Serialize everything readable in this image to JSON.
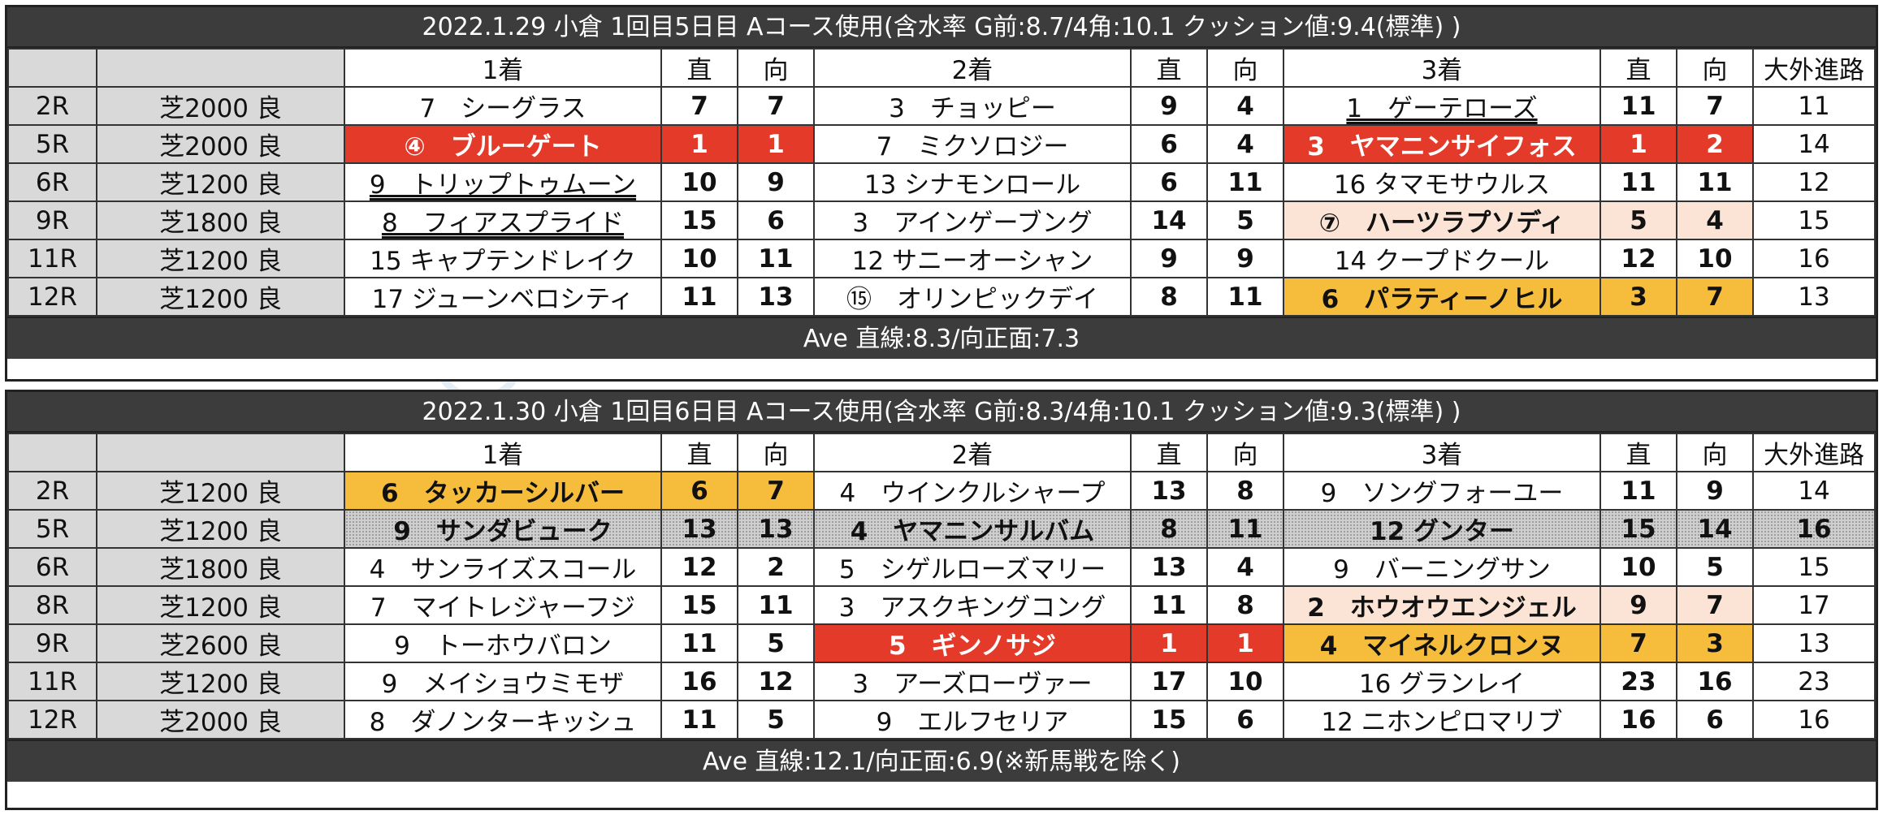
{
  "watermark": "@track_bias　─ちゃん",
  "headers": {
    "col1": "1着",
    "col2": "2着",
    "col3": "3着",
    "straight": "直",
    "direction": "向",
    "outside": "大外進路"
  },
  "days": [
    {
      "title": "2022.1.29 小倉 1回目5日目 Aコース使用(含水率 G前:8.7/4角:10.1 クッション値:9.4(標準) )",
      "ave": "Ave 直線:8.3/向正面:7.3",
      "races": [
        {
          "race": "2R",
          "course": "芝2000 良",
          "p1": {
            "name": "7　シーグラス",
            "s": "7",
            "d": "7"
          },
          "p2": {
            "name": "3　チョッピー",
            "s": "9",
            "d": "4"
          },
          "p3": {
            "name": "1　ゲーテローズ",
            "s": "11",
            "d": "7"
          },
          "out": "11"
        },
        {
          "race": "5R",
          "course": "芝2000 良",
          "p1": {
            "name": "④　ブルーゲート",
            "s": "1",
            "d": "1"
          },
          "p2": {
            "name": "7　ミクソロジー",
            "s": "6",
            "d": "4"
          },
          "p3": {
            "name": "3　ヤマニンサイフォス",
            "s": "1",
            "d": "2"
          },
          "out": "14"
        },
        {
          "race": "6R",
          "course": "芝1200 良",
          "p1": {
            "name": "9　トリップトゥムーン",
            "s": "10",
            "d": "9"
          },
          "p2": {
            "name": "13 シナモンロール",
            "s": "6",
            "d": "11"
          },
          "p3": {
            "name": "16 タマモサウルス",
            "s": "11",
            "d": "11"
          },
          "out": "12"
        },
        {
          "race": "9R",
          "course": "芝1800 良",
          "p1": {
            "name": "8　フィアスプライド",
            "s": "15",
            "d": "6"
          },
          "p2": {
            "name": "3　アインゲーブング",
            "s": "14",
            "d": "5"
          },
          "p3": {
            "name": "⑦　ハーツラプソディ",
            "s": "5",
            "d": "4"
          },
          "out": "15"
        },
        {
          "race": "11R",
          "course": "芝1200 良",
          "p1": {
            "name": "15 キャプテンドレイク",
            "s": "10",
            "d": "11"
          },
          "p2": {
            "name": "12 サニーオーシャン",
            "s": "9",
            "d": "9"
          },
          "p3": {
            "name": "14 クープドクール",
            "s": "12",
            "d": "10"
          },
          "out": "16"
        },
        {
          "race": "12R",
          "course": "芝1200 良",
          "p1": {
            "name": "17 ジューンベロシティ",
            "s": "11",
            "d": "13"
          },
          "p2": {
            "name": "⑮　オリンピックデイ",
            "s": "8",
            "d": "11"
          },
          "p3": {
            "name": "6　パラティーノヒル",
            "s": "3",
            "d": "7"
          },
          "out": "13"
        }
      ]
    },
    {
      "title": "2022.1.30 小倉 1回目6日目 Aコース使用(含水率 G前:8.3/4角:10.1 クッション値:9.3(標準) )",
      "ave": "Ave 直線:12.1/向正面:6.9(※新馬戦を除く)",
      "races": [
        {
          "race": "2R",
          "course": "芝1200 良",
          "p1": {
            "name": "6　タッカーシルバー",
            "s": "6",
            "d": "7"
          },
          "p2": {
            "name": "4　ウインクルシャープ",
            "s": "13",
            "d": "8"
          },
          "p3": {
            "name": "9　ソングフォーユー",
            "s": "11",
            "d": "9"
          },
          "out": "14"
        },
        {
          "race": "5R",
          "course": "芝1200 良",
          "p1": {
            "name": "9　サンダビューク",
            "s": "13",
            "d": "13"
          },
          "p2": {
            "name": "4　ヤマニンサルバム",
            "s": "8",
            "d": "11"
          },
          "p3": {
            "name": "12 グンター",
            "s": "15",
            "d": "14"
          },
          "out": "16"
        },
        {
          "race": "6R",
          "course": "芝1800 良",
          "p1": {
            "name": "4　サンライズスコール",
            "s": "12",
            "d": "2"
          },
          "p2": {
            "name": "5　シゲルローズマリー",
            "s": "13",
            "d": "4"
          },
          "p3": {
            "name": "9　バーニングサン",
            "s": "10",
            "d": "5"
          },
          "out": "15"
        },
        {
          "race": "8R",
          "course": "芝1200 良",
          "p1": {
            "name": "7　マイトレジャーフジ",
            "s": "15",
            "d": "11"
          },
          "p2": {
            "name": "3　アスクキングコング",
            "s": "11",
            "d": "8"
          },
          "p3": {
            "name": "2　ホウオウエンジェル",
            "s": "9",
            "d": "7"
          },
          "out": "17"
        },
        {
          "race": "9R",
          "course": "芝2600 良",
          "p1": {
            "name": "9　トーホウバロン",
            "s": "11",
            "d": "5"
          },
          "p2": {
            "name": "5　ギンノサジ",
            "s": "1",
            "d": "1"
          },
          "p3": {
            "name": "4　マイネルクロンヌ",
            "s": "7",
            "d": "3"
          },
          "out": "13"
        },
        {
          "race": "11R",
          "course": "芝1200 良",
          "p1": {
            "name": "9　メイショウミモザ",
            "s": "16",
            "d": "12"
          },
          "p2": {
            "name": "3　アーズローヴァー",
            "s": "17",
            "d": "10"
          },
          "p3": {
            "name": "16 グランレイ",
            "s": "23",
            "d": "16"
          },
          "out": "23"
        },
        {
          "race": "12R",
          "course": "芝2000 良",
          "p1": {
            "name": "8　ダノンターキッシュ",
            "s": "11",
            "d": "5"
          },
          "p2": {
            "name": "9　エルフセリア",
            "s": "15",
            "d": "6"
          },
          "p3": {
            "name": "12 ニホンピロマリブ",
            "s": "16",
            "d": "6"
          },
          "out": "16"
        }
      ]
    }
  ]
}
